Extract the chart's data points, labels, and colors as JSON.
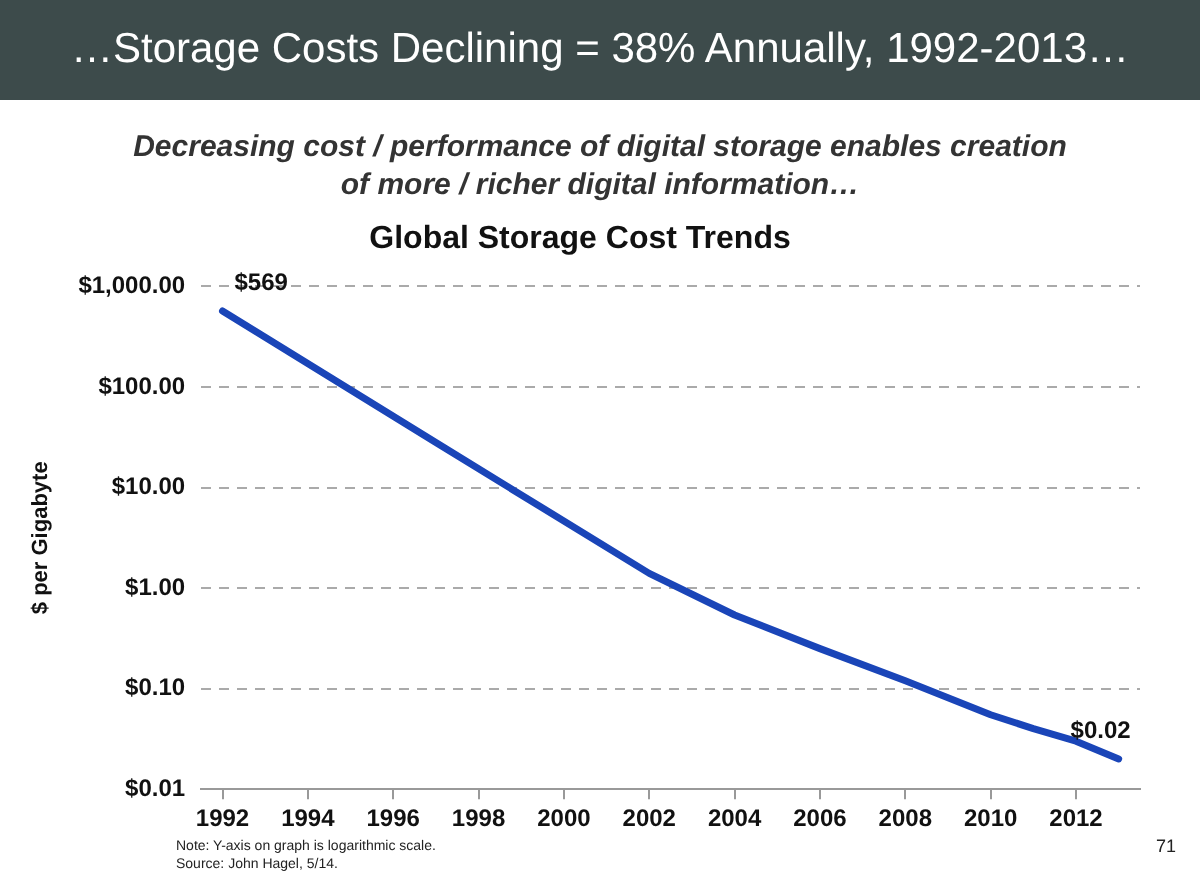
{
  "chart_data": {
    "type": "line",
    "title": "Global Storage Cost Trends",
    "subtitle": "Decreasing cost / performance of digital storage enables creation of more / richer digital information…",
    "ylabel": "$ per Gigabyte",
    "annotations": [
      "…Storage Costs Declining = 38% Annually, 1992-2013…",
      "Note: Y-axis on graph is logarithmic scale.",
      "Source: John Hagel, 5/14.",
      "71"
    ],
    "x": [
      1992,
      1997,
      2002,
      2004,
      2006,
      2008,
      2010,
      2011,
      2012,
      2013
    ],
    "series": [
      {
        "color": "#1a45b8",
        "values": [
          569,
          28,
          1.4,
          0.54,
          0.25,
          0.12,
          0.055,
          0.04,
          0.03,
          0.02
        ],
        "value_labels": [
          "$569",
          null,
          null,
          null,
          null,
          null,
          null,
          null,
          null,
          "$0.02"
        ]
      }
    ],
    "xlim": [
      1991.5,
      2013.5
    ],
    "xticks": [
      1992,
      1994,
      1996,
      1998,
      2000,
      2002,
      2004,
      2006,
      2008,
      2010,
      2012
    ],
    "ylim": [
      0.01,
      1000
    ],
    "yticks": [
      {
        "value": 0.01,
        "label": "$0.01"
      },
      {
        "value": 0.1,
        "label": "$0.10"
      },
      {
        "value": 1,
        "label": "$1.00"
      },
      {
        "value": 10,
        "label": "$10.00"
      },
      {
        "value": 100,
        "label": "$100.00"
      },
      {
        "value": 1000,
        "label": "$1,000.00"
      }
    ],
    "log": "y",
    "grid": "y",
    "legend": false,
    "marker": "none",
    "line_style": "solid"
  }
}
